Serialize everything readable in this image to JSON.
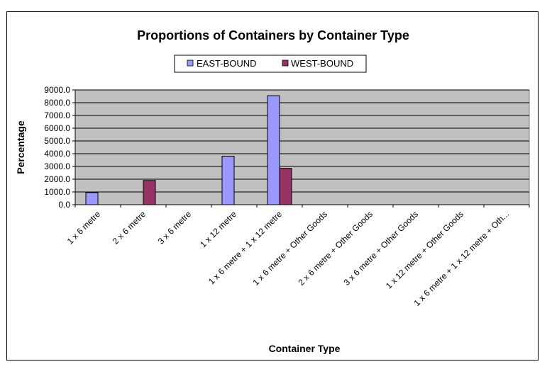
{
  "chart_data": {
    "type": "bar",
    "title": "Proportions of Containers by Container Type",
    "xlabel": "Container Type",
    "ylabel": "Percentage",
    "ylim": [
      0,
      9000
    ],
    "ytick_step": 1000,
    "ytick_labels": [
      "0.0",
      "1000.0",
      "2000.0",
      "3000.0",
      "4000.0",
      "5000.0",
      "6000.0",
      "7000.0",
      "8000.0",
      "9000.0"
    ],
    "grid": true,
    "legend_position": "top",
    "categories": [
      "1 x 6 metre",
      "2 x 6 metre",
      "3 x 6 metre",
      "1 x 12 metre",
      "1 x 6 metre + 1 x 12 metre",
      "1 x 6 metre + Other Goods",
      "2 x 6 metre + Other Goods",
      "3 x 6 metre + Other Goods",
      "1 x 12 metre + Other Goods",
      "1 x 6 metre + 1 x 12 metre + Oth..."
    ],
    "series": [
      {
        "name": "EAST-BOUND",
        "color": "#9999FF",
        "values": [
          950,
          0,
          0,
          3800,
          8550,
          0,
          0,
          0,
          0,
          0
        ]
      },
      {
        "name": "WEST-BOUND",
        "color": "#993366",
        "values": [
          0,
          1900,
          0,
          0,
          2850,
          0,
          0,
          0,
          0,
          0
        ]
      }
    ],
    "plot_background": "#C0C0C0"
  }
}
